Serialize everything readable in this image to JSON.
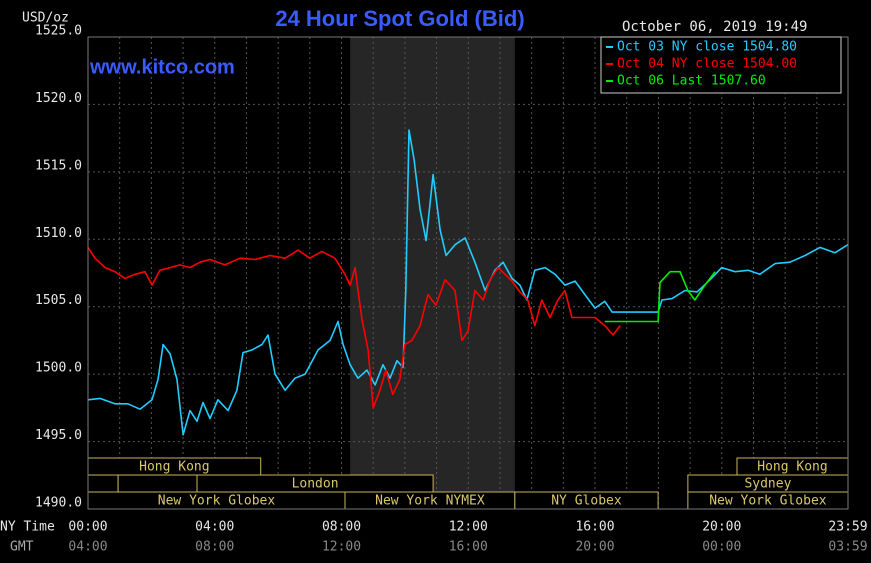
{
  "chart_data": {
    "type": "line",
    "title": "24 Hour Spot Gold (Bid)",
    "subtitle": "www.kitco.com",
    "date": "October 06, 2019 19:49",
    "ylabel": "USD/oz",
    "xlabel": "NY Time",
    "x2label": "GMT",
    "xlim": [
      0,
      23.983
    ],
    "ylim": [
      1490,
      1525
    ],
    "yticks": [
      {
        "value": 1490,
        "label": "1490.0"
      },
      {
        "value": 1495,
        "label": "1495.0"
      },
      {
        "value": 1500,
        "label": "1500.0"
      },
      {
        "value": 1505,
        "label": "1505.0"
      },
      {
        "value": 1510,
        "label": "1510.0"
      },
      {
        "value": 1515,
        "label": "1515.0"
      },
      {
        "value": 1520,
        "label": "1520.0"
      },
      {
        "value": 1525,
        "label": "1525.0"
      }
    ],
    "xticks": [
      {
        "value": 0,
        "label": "00:00"
      },
      {
        "value": 4,
        "label": "04:00"
      },
      {
        "value": 8,
        "label": "08:00"
      },
      {
        "value": 12,
        "label": "12:00"
      },
      {
        "value": 16,
        "label": "16:00"
      },
      {
        "value": 20,
        "label": "20:00"
      },
      {
        "value": 23.983,
        "label": "23:59"
      }
    ],
    "x2ticks": [
      {
        "value": 0,
        "label": "04:00"
      },
      {
        "value": 4,
        "label": "08:00"
      },
      {
        "value": 8,
        "label": "12:00"
      },
      {
        "value": 12,
        "label": "16:00"
      },
      {
        "value": 16,
        "label": "20:00"
      },
      {
        "value": 20,
        "label": "00:00"
      },
      {
        "value": 23.983,
        "label": "03:59"
      }
    ],
    "xgrid": [
      1,
      2,
      3,
      4,
      5,
      6,
      7,
      8,
      9,
      10,
      11,
      12,
      13,
      14,
      15,
      16,
      17,
      18,
      19,
      20,
      21,
      22,
      23
    ],
    "grid": true,
    "shade": [
      8.27,
      13.47
    ],
    "sessions": [
      [
        {
          "label": "Hong Kong",
          "start": 0,
          "end": 5.45
        },
        {
          "label": "Hong Kong",
          "start": 20.48,
          "end": 23.983
        }
      ],
      [
        {
          "label": null,
          "start": 0,
          "end": 0.95
        },
        {
          "label": null,
          "start": 0.95,
          "end": 3.44
        },
        {
          "label": "London",
          "start": 3.44,
          "end": 10.89
        },
        {
          "label": "Sydney",
          "start": 18.93,
          "end": 23.983
        }
      ],
      [
        {
          "label": "New York Globex",
          "start": 0,
          "end": 8.11
        },
        {
          "label": "New York NYMEX",
          "start": 8.11,
          "end": 13.47
        },
        {
          "label": "NY Globex",
          "start": 13.47,
          "end": 17.99
        },
        {
          "label": "New York Globex",
          "start": 18.93,
          "end": 23.983
        }
      ]
    ],
    "series": [
      {
        "name": "Oct 03 NY close 1504.80",
        "color": "#22ccff",
        "x": [
          0,
          0.38,
          0.85,
          1.26,
          1.64,
          2.02,
          2.21,
          2.37,
          2.59,
          2.81,
          3.0,
          3.22,
          3.44,
          3.63,
          3.85,
          4.1,
          4.42,
          4.7,
          4.89,
          5.18,
          5.49,
          5.68,
          5.9,
          6.22,
          6.53,
          6.85,
          7.26,
          7.64,
          7.89,
          8.05,
          8.27,
          8.52,
          8.8,
          9.06,
          9.31,
          9.53,
          9.75,
          9.94,
          10.03,
          10.13,
          10.29,
          10.48,
          10.67,
          10.89,
          11.11,
          11.3,
          11.58,
          11.9,
          12.21,
          12.53,
          12.84,
          13.1,
          13.38,
          13.63,
          13.85,
          14.1,
          14.42,
          14.74,
          15.05,
          15.37,
          15.68,
          16.0,
          16.31,
          16.54,
          17.99,
          18.11,
          18.43,
          18.84,
          19.22,
          19.63,
          20.0,
          20.42,
          20.83,
          21.2,
          21.68,
          22.15,
          22.63,
          23.1,
          23.57,
          23.98
        ],
        "values": [
          1498.1,
          1498.2,
          1497.8,
          1497.8,
          1497.4,
          1498.1,
          1499.6,
          1502.2,
          1501.5,
          1499.6,
          1495.5,
          1497.3,
          1496.5,
          1497.9,
          1496.7,
          1498.1,
          1497.3,
          1498.8,
          1501.6,
          1501.8,
          1502.2,
          1502.9,
          1500.0,
          1498.8,
          1499.7,
          1500.0,
          1501.8,
          1502.5,
          1503.9,
          1502.2,
          1500.7,
          1499.7,
          1500.3,
          1499.2,
          1500.7,
          1499.7,
          1501.0,
          1500.5,
          1506.2,
          1518.1,
          1515.9,
          1512.2,
          1509.9,
          1514.8,
          1510.7,
          1508.8,
          1509.6,
          1510.1,
          1508.3,
          1506.2,
          1507.7,
          1508.3,
          1507.1,
          1506.6,
          1505.5,
          1507.7,
          1507.9,
          1507.4,
          1506.6,
          1506.9,
          1505.9,
          1504.9,
          1505.4,
          1504.6,
          1504.6,
          1505.5,
          1505.6,
          1506.2,
          1506.1,
          1507.0,
          1507.9,
          1507.6,
          1507.7,
          1507.4,
          1508.2,
          1508.3,
          1508.8,
          1509.4,
          1509.0,
          1509.6
        ]
      },
      {
        "name": "Oct 04 NY close 1504.00",
        "color": "#ff0000",
        "x": [
          0,
          0.22,
          0.54,
          0.85,
          1.17,
          1.48,
          1.8,
          2.02,
          2.27,
          2.59,
          2.9,
          3.22,
          3.53,
          3.85,
          4.32,
          4.8,
          5.27,
          5.74,
          6.22,
          6.63,
          7.0,
          7.38,
          7.79,
          8.11,
          8.27,
          8.43,
          8.52,
          8.65,
          8.84,
          9.0,
          9.21,
          9.4,
          9.62,
          9.84,
          10.0,
          10.22,
          10.48,
          10.73,
          10.98,
          11.27,
          11.58,
          11.8,
          11.99,
          12.21,
          12.47,
          12.69,
          12.94,
          13.16,
          13.38,
          13.63,
          13.88,
          14.1,
          14.32,
          14.58,
          14.83,
          15.05,
          15.27,
          15.59,
          16.0,
          16.31,
          16.57,
          16.79
        ],
        "values": [
          1509.4,
          1508.6,
          1507.9,
          1507.6,
          1507.1,
          1507.4,
          1507.6,
          1506.6,
          1507.7,
          1507.9,
          1508.1,
          1507.9,
          1508.3,
          1508.5,
          1508.1,
          1508.6,
          1508.5,
          1508.8,
          1508.6,
          1509.2,
          1508.6,
          1509.1,
          1508.6,
          1507.4,
          1506.6,
          1507.9,
          1506.2,
          1504.0,
          1501.8,
          1497.5,
          1498.8,
          1500.3,
          1498.5,
          1499.6,
          1502.2,
          1502.5,
          1503.6,
          1505.9,
          1505.1,
          1507.0,
          1506.2,
          1502.5,
          1503.2,
          1506.2,
          1505.5,
          1507.0,
          1507.9,
          1507.4,
          1506.9,
          1506.1,
          1505.5,
          1503.6,
          1505.5,
          1504.2,
          1505.5,
          1506.2,
          1504.2,
          1504.2,
          1504.2,
          1503.6,
          1502.9,
          1503.6
        ]
      },
      {
        "name": "Oct 06 Last 1507.60",
        "color": "#00ee00",
        "x": [
          16.31,
          17.99,
          18.05,
          18.37,
          18.68,
          18.93,
          19.15,
          19.47,
          19.79
        ],
        "values": [
          1503.9,
          1503.9,
          1506.8,
          1507.6,
          1507.6,
          1506.2,
          1505.5,
          1506.6,
          1507.6
        ]
      }
    ]
  }
}
